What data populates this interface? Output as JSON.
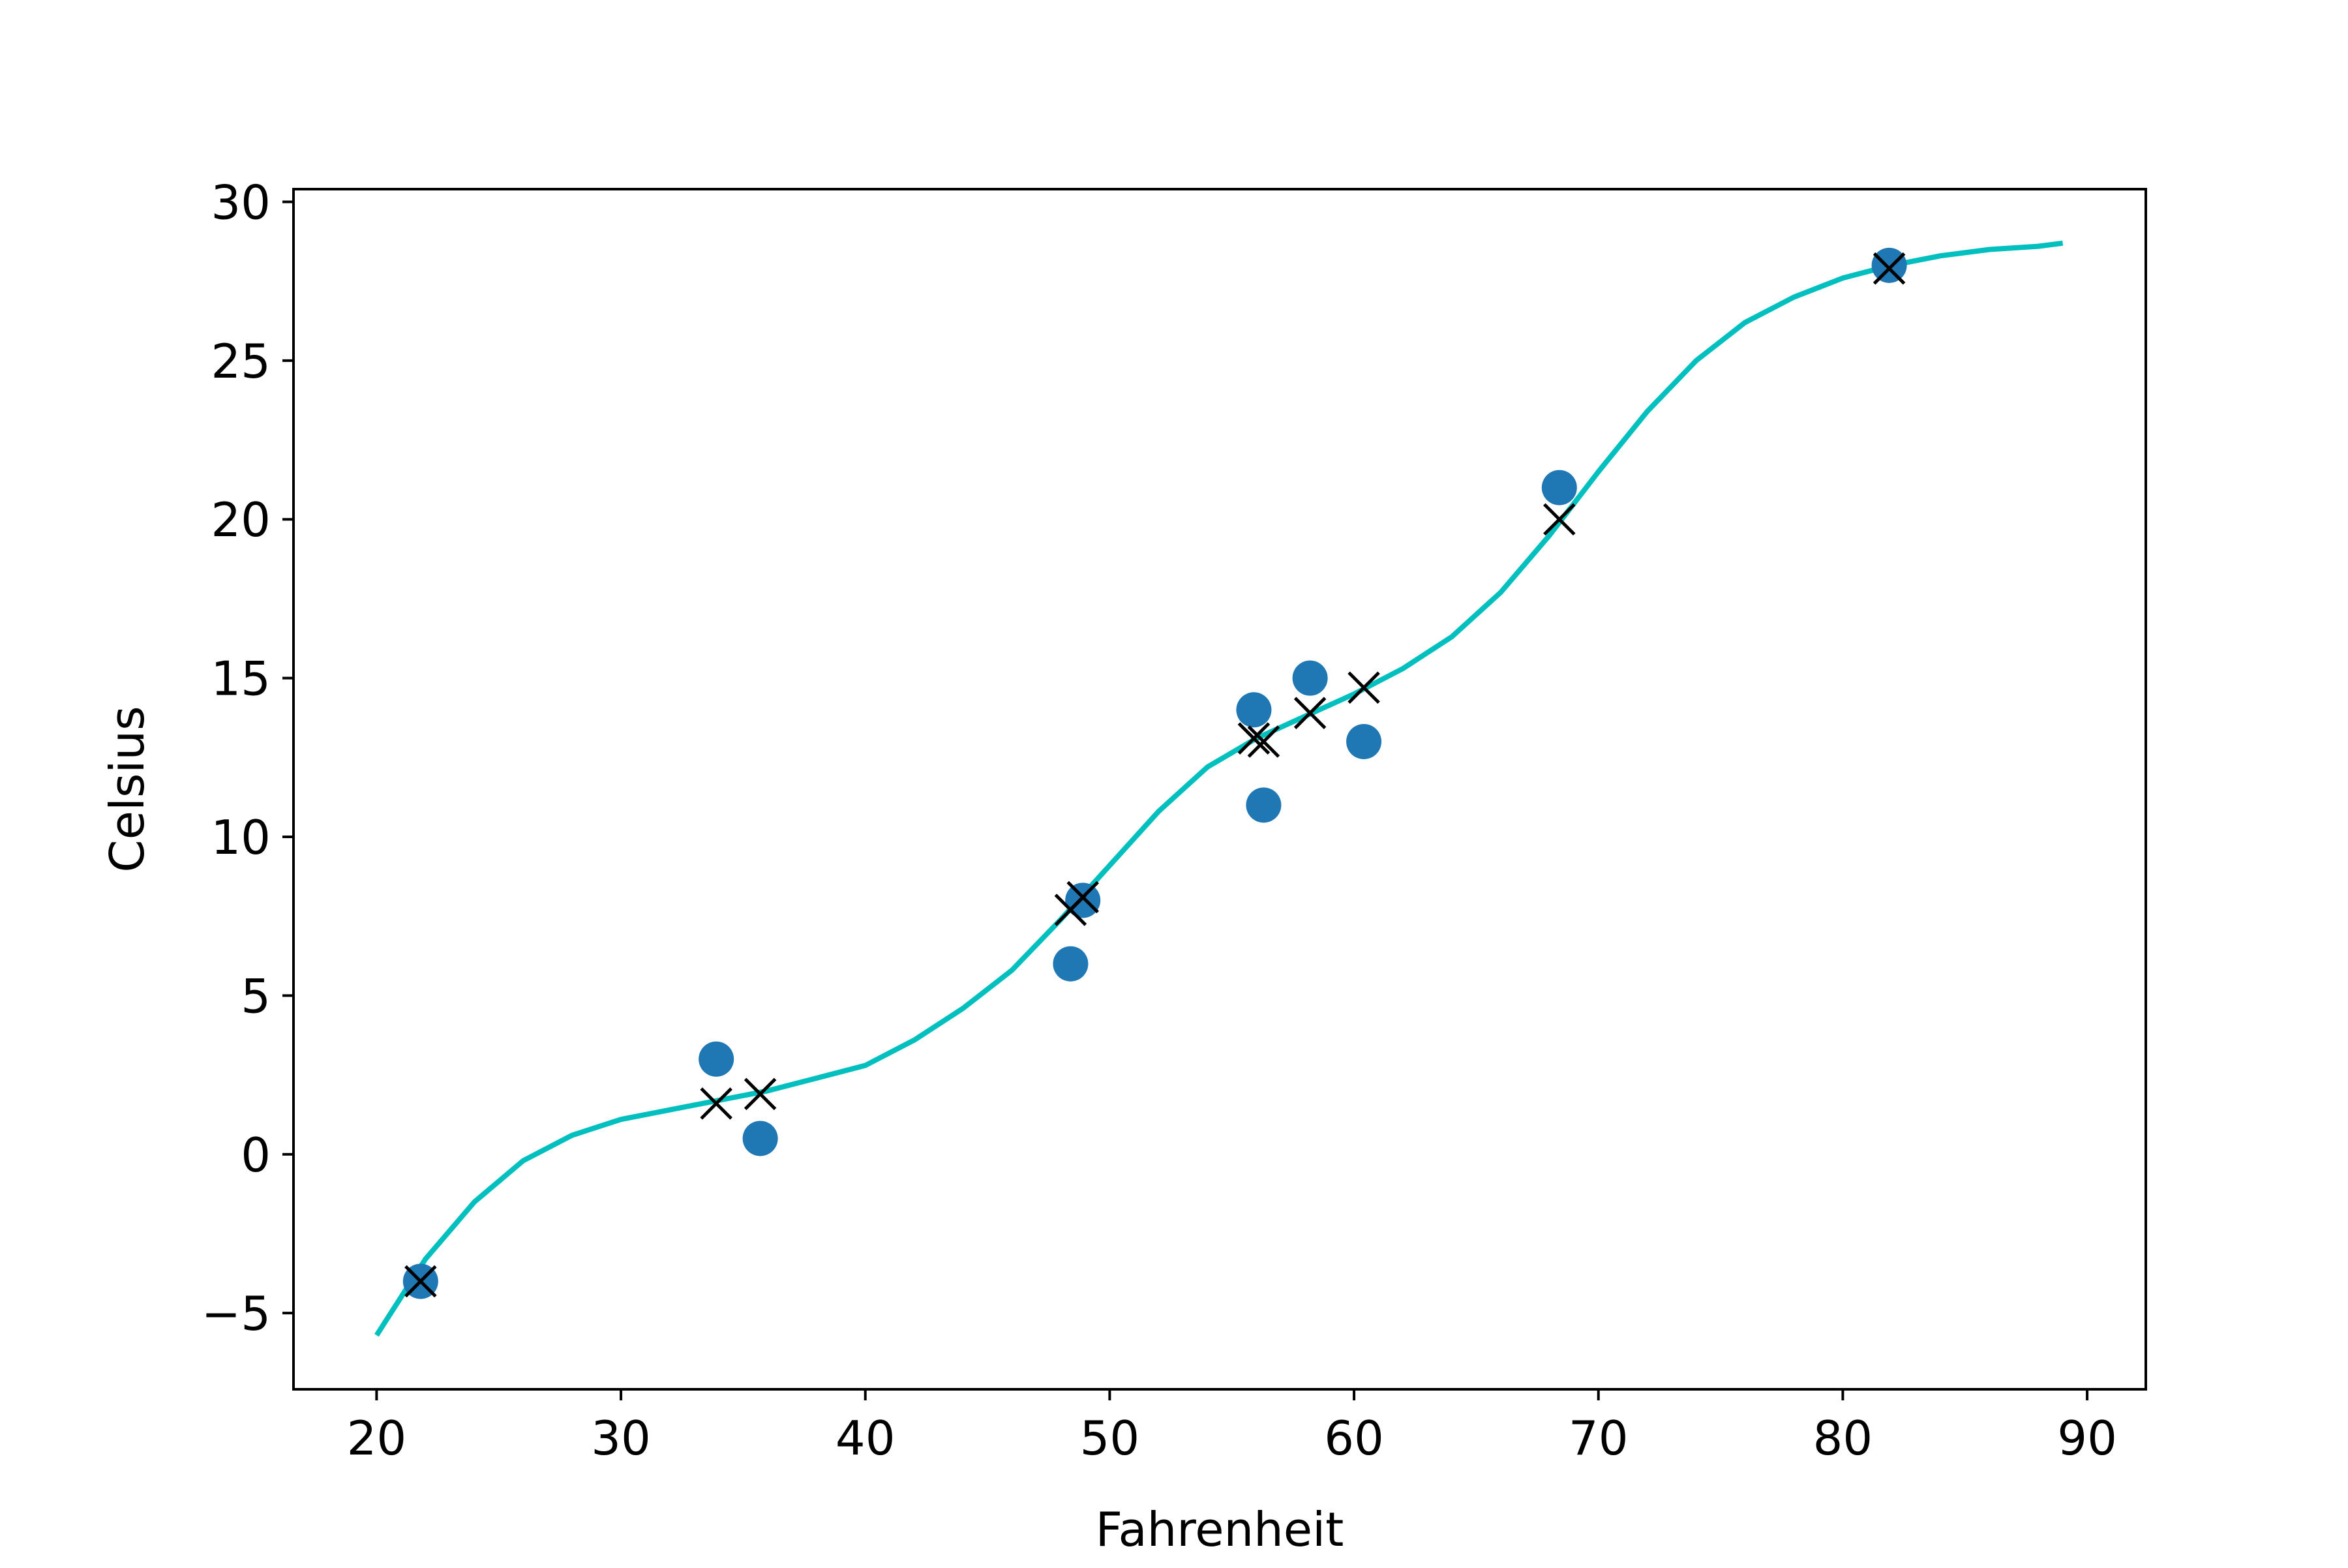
{
  "chart_data": {
    "type": "scatter",
    "xlabel": "Fahrenheit",
    "ylabel": "Celsius",
    "xlim": [
      16.6,
      92.4
    ],
    "ylim": [
      -7.4,
      30.4
    ],
    "xticks": [
      20,
      30,
      40,
      50,
      60,
      70,
      80,
      90
    ],
    "xtick_labels": [
      "20",
      "30",
      "40",
      "50",
      "60",
      "70",
      "80",
      "90"
    ],
    "yticks": [
      -5,
      0,
      5,
      10,
      15,
      20,
      25,
      30
    ],
    "ytick_labels": [
      "−5",
      "0",
      "5",
      "10",
      "15",
      "20",
      "25",
      "30"
    ],
    "grid": false,
    "legend": "none",
    "series": [
      {
        "kind": "scatter-circle",
        "color": "#1f77b4",
        "points": [
          {
            "x": 35.7,
            "y": 0.5
          },
          {
            "x": 55.9,
            "y": 14.0
          },
          {
            "x": 58.2,
            "y": 15.0
          },
          {
            "x": 81.9,
            "y": 28.0
          },
          {
            "x": 56.3,
            "y": 11.0
          },
          {
            "x": 48.9,
            "y": 8.0
          },
          {
            "x": 33.9,
            "y": 3.0
          },
          {
            "x": 21.8,
            "y": -4.0
          },
          {
            "x": 48.4,
            "y": 6.0
          },
          {
            "x": 60.4,
            "y": 13.0
          },
          {
            "x": 68.4,
            "y": 21.0
          }
        ]
      },
      {
        "kind": "scatter-x",
        "color": "#000000",
        "points": [
          {
            "x": 35.7,
            "y": 1.9
          },
          {
            "x": 55.9,
            "y": 13.1
          },
          {
            "x": 58.2,
            "y": 13.9
          },
          {
            "x": 81.9,
            "y": 27.9
          },
          {
            "x": 56.3,
            "y": 13.0
          },
          {
            "x": 48.9,
            "y": 8.1
          },
          {
            "x": 33.9,
            "y": 1.6
          },
          {
            "x": 21.8,
            "y": -4.0
          },
          {
            "x": 48.4,
            "y": 7.7
          },
          {
            "x": 60.4,
            "y": 14.7
          },
          {
            "x": 68.4,
            "y": 20.0
          }
        ]
      },
      {
        "kind": "line",
        "color": "#00bfbf",
        "points": [
          {
            "x": 20,
            "y": -5.7
          },
          {
            "x": 22,
            "y": -3.3
          },
          {
            "x": 24,
            "y": -1.5
          },
          {
            "x": 26,
            "y": -0.2
          },
          {
            "x": 28,
            "y": 0.6
          },
          {
            "x": 30,
            "y": 1.1
          },
          {
            "x": 32,
            "y": 1.4
          },
          {
            "x": 34,
            "y": 1.7
          },
          {
            "x": 36,
            "y": 2.0
          },
          {
            "x": 38,
            "y": 2.4
          },
          {
            "x": 40,
            "y": 2.8
          },
          {
            "x": 42,
            "y": 3.6
          },
          {
            "x": 44,
            "y": 4.6
          },
          {
            "x": 46,
            "y": 5.8
          },
          {
            "x": 48,
            "y": 7.4
          },
          {
            "x": 50,
            "y": 9.1
          },
          {
            "x": 52,
            "y": 10.8
          },
          {
            "x": 54,
            "y": 12.2
          },
          {
            "x": 56,
            "y": 13.1
          },
          {
            "x": 58,
            "y": 13.8
          },
          {
            "x": 60,
            "y": 14.5
          },
          {
            "x": 62,
            "y": 15.3
          },
          {
            "x": 64,
            "y": 16.3
          },
          {
            "x": 66,
            "y": 17.7
          },
          {
            "x": 68,
            "y": 19.5
          },
          {
            "x": 70,
            "y": 21.5
          },
          {
            "x": 72,
            "y": 23.4
          },
          {
            "x": 74,
            "y": 25.0
          },
          {
            "x": 76,
            "y": 26.2
          },
          {
            "x": 78,
            "y": 27.0
          },
          {
            "x": 80,
            "y": 27.6
          },
          {
            "x": 82,
            "y": 28.0
          },
          {
            "x": 84,
            "y": 28.3
          },
          {
            "x": 86,
            "y": 28.5
          },
          {
            "x": 88,
            "y": 28.6
          },
          {
            "x": 89,
            "y": 28.7
          }
        ]
      }
    ]
  }
}
